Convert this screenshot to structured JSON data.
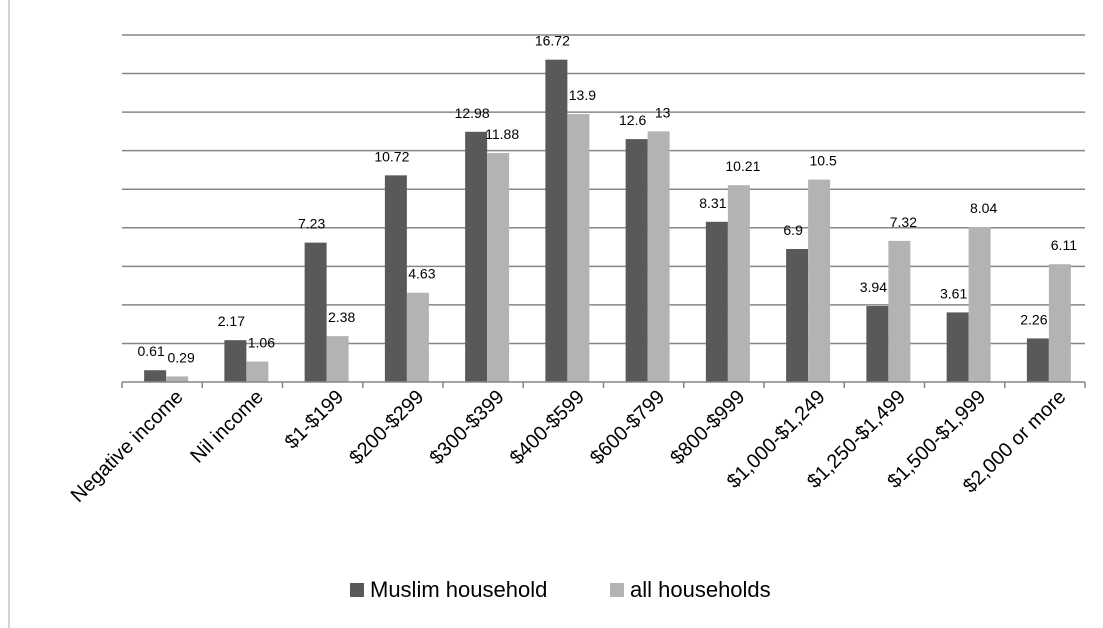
{
  "chart_data": {
    "type": "bar",
    "categories": [
      "Negative income",
      "Nil income",
      "$1-$199",
      "$200-$299",
      "$300-$399",
      "$400-$599",
      "$600-$799",
      "$800-$999",
      "$1,000-$1,249",
      "$1,250-$1,499",
      "$1,500-$1,999",
      "$2,000 or more"
    ],
    "series": [
      {
        "name": "Muslim household",
        "color": "#595959",
        "values": [
          0.61,
          2.17,
          7.23,
          10.72,
          12.98,
          16.72,
          12.6,
          8.31,
          6.9,
          3.94,
          3.61,
          2.26
        ]
      },
      {
        "name": "all households",
        "color": "#b3b3b3",
        "values": [
          0.29,
          1.06,
          2.38,
          4.63,
          11.88,
          13.9,
          13,
          10.21,
          10.5,
          7.32,
          8.04,
          6.11
        ]
      }
    ],
    "data_labels": [
      [
        "0.61",
        "2.17",
        "7.23",
        "10.72",
        "12.98",
        "16.72",
        "12.6",
        "8.31",
        "6.9",
        "3.94",
        "3.61",
        "2.26"
      ],
      [
        "0.29",
        "1.06",
        "2.38",
        "4.63",
        "11.88",
        "13.9",
        "13",
        "10.21",
        "10.5",
        "7.32",
        "8.04",
        "6.11"
      ]
    ],
    "ylim": [
      0,
      18
    ],
    "y_gridline_step": 2,
    "grid": true,
    "y_axis_tick_labels_shown": false,
    "x_tick_label_rotation": "45 degrees",
    "legend_position": "bottom"
  }
}
